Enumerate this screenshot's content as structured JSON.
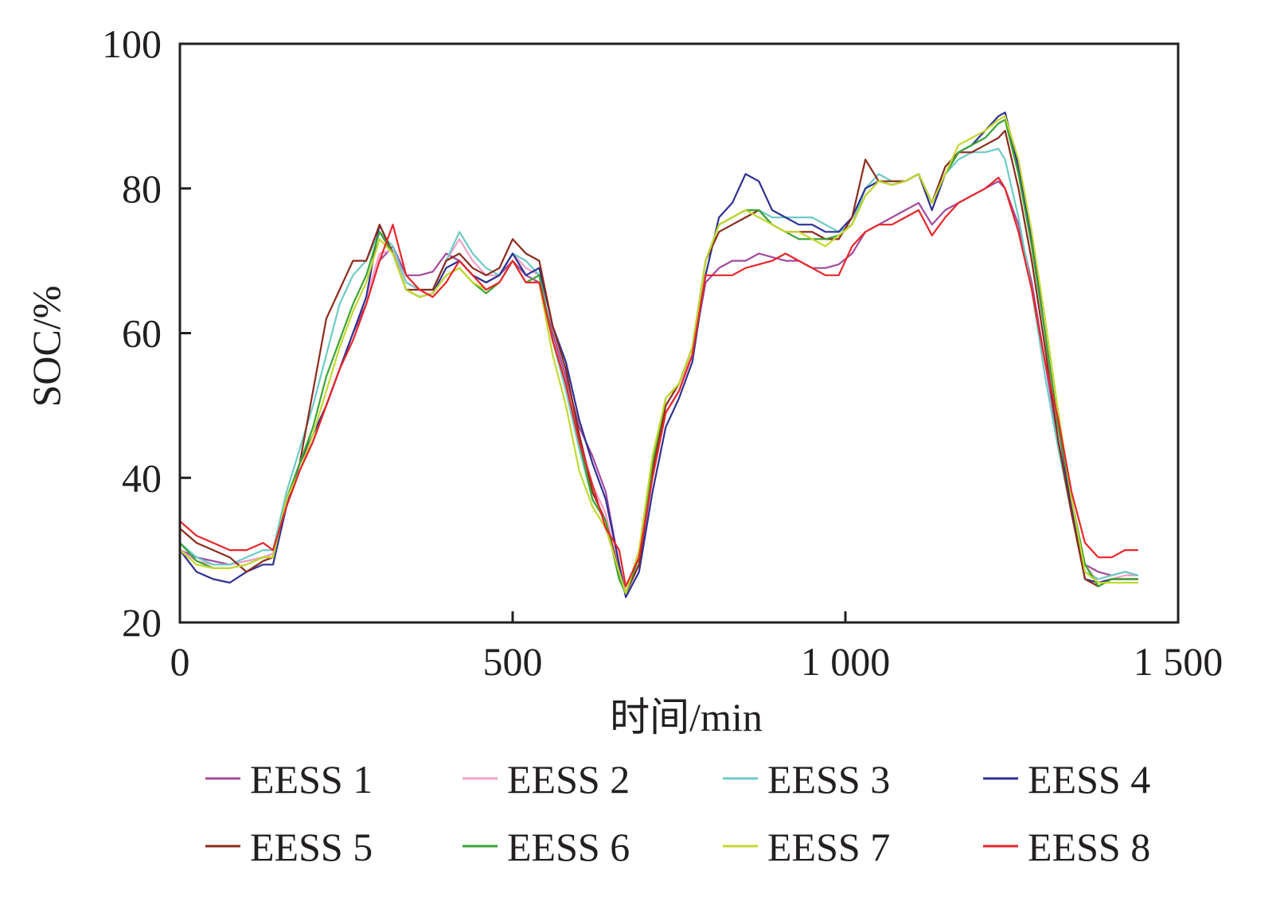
{
  "chart_data": {
    "type": "line",
    "title": "",
    "xlabel": "时间/min",
    "ylabel": "SOC/%",
    "xlim": [
      0,
      1500
    ],
    "ylim": [
      20,
      100
    ],
    "xticks": [
      {
        "value": 0,
        "label": "0"
      },
      {
        "value": 500,
        "label": "500"
      },
      {
        "value": 1000,
        "label": "1 000"
      },
      {
        "value": 1500,
        "label": "1 500"
      }
    ],
    "yticks": [
      {
        "value": 20,
        "label": "20"
      },
      {
        "value": 40,
        "label": "40"
      },
      {
        "value": 60,
        "label": "60"
      },
      {
        "value": 80,
        "label": "80"
      },
      {
        "value": 100,
        "label": "100"
      }
    ],
    "grid": false,
    "legend_placement": "bottom",
    "x": [
      0,
      25,
      50,
      75,
      100,
      125,
      140,
      160,
      180,
      200,
      220,
      240,
      260,
      280,
      300,
      320,
      340,
      360,
      380,
      400,
      420,
      440,
      460,
      480,
      500,
      520,
      540,
      560,
      580,
      600,
      620,
      640,
      660,
      670,
      690,
      710,
      730,
      750,
      770,
      790,
      810,
      830,
      850,
      870,
      890,
      910,
      930,
      950,
      970,
      990,
      1010,
      1030,
      1050,
      1070,
      1090,
      1110,
      1130,
      1150,
      1170,
      1190,
      1210,
      1230,
      1240,
      1260,
      1280,
      1300,
      1320,
      1340,
      1360,
      1380,
      1400,
      1420,
      1440
    ],
    "series": [
      {
        "name": "EESS 1",
        "color": "#a24a9e",
        "values": [
          30,
          29,
          28.5,
          28,
          28.5,
          29,
          29.5,
          36,
          41,
          45,
          50,
          55,
          60,
          64,
          70,
          72,
          68,
          68,
          68.5,
          71,
          70,
          68,
          67,
          68,
          70,
          68,
          67,
          60,
          54,
          47,
          43,
          38,
          28,
          24,
          28,
          40,
          49,
          52,
          57,
          67,
          69,
          70,
          70,
          71,
          70.5,
          70,
          70,
          69,
          69,
          69.5,
          71,
          74,
          75,
          76,
          77,
          78,
          75,
          77,
          78,
          79,
          80,
          81,
          80,
          75,
          67,
          56,
          45,
          36,
          28,
          27,
          26.5,
          27,
          26.5
        ]
      },
      {
        "name": "EESS 2",
        "color": "#f59fc8",
        "values": [
          30,
          28.5,
          28,
          28,
          28.5,
          29,
          29.5,
          37,
          42,
          46,
          50,
          55,
          60,
          65,
          71,
          71.5,
          67,
          66,
          66,
          70,
          73,
          70,
          68,
          68,
          71,
          69,
          68,
          59,
          53,
          46,
          39,
          35,
          27,
          24,
          29,
          41,
          50,
          53,
          57,
          70,
          75,
          76,
          77,
          77,
          75,
          74,
          74,
          74,
          73,
          73.5,
          75,
          80,
          81,
          80.5,
          81,
          82,
          78,
          82,
          85,
          86,
          87,
          89,
          89.5,
          82,
          72,
          60,
          47,
          37,
          28,
          25.5,
          26,
          26.5,
          26.5
        ]
      },
      {
        "name": "EESS 3",
        "color": "#6ccbc6",
        "values": [
          31,
          29,
          28,
          28,
          29,
          30,
          30,
          38,
          44,
          50,
          57,
          64,
          68,
          70,
          74,
          72,
          67,
          66,
          66,
          70,
          74,
          71,
          69,
          68,
          71,
          70,
          68,
          59,
          52,
          44,
          37,
          34,
          26,
          24,
          29,
          42,
          51,
          53,
          58,
          70,
          75,
          76,
          77,
          77,
          76,
          76,
          76,
          76,
          75,
          74,
          75,
          80,
          82,
          81,
          81,
          82,
          78,
          82,
          84,
          85,
          85,
          85.5,
          84,
          76,
          66,
          54,
          44,
          35,
          27,
          26,
          26.5,
          27,
          26.5
        ]
      },
      {
        "name": "EESS 4",
        "color": "#2e3192",
        "values": [
          30,
          27,
          26,
          25.5,
          27,
          28,
          28,
          36,
          42,
          46,
          50,
          55,
          60,
          65,
          75,
          71,
          66,
          65,
          65.5,
          69,
          70,
          68,
          67,
          68,
          71,
          68,
          69,
          61,
          56,
          48,
          42,
          37,
          28,
          23.5,
          27,
          38,
          47,
          51,
          56,
          68,
          76,
          78,
          82,
          81,
          77,
          76,
          75,
          75,
          74,
          74,
          76,
          80,
          81,
          80.5,
          81,
          82,
          77,
          82,
          85,
          86,
          88,
          90,
          90.5,
          83,
          73,
          60,
          47,
          36,
          26,
          25.5,
          26,
          26,
          26
        ]
      },
      {
        "name": "EESS 5",
        "color": "#8b2b1c",
        "values": [
          33,
          31,
          30,
          29,
          27,
          28.5,
          29,
          37,
          42,
          52,
          62,
          66,
          70,
          70,
          75,
          71,
          66,
          66,
          66,
          70,
          71,
          69,
          68,
          69,
          73,
          71,
          70,
          61,
          55,
          46,
          38,
          34,
          27,
          24,
          28,
          41,
          50,
          53,
          58,
          70,
          74,
          75,
          76,
          77,
          75,
          74,
          74,
          74,
          73,
          73,
          76,
          84,
          81,
          81,
          81,
          82,
          78,
          83,
          85,
          85,
          86,
          87,
          88,
          80,
          70,
          58,
          45,
          35,
          26,
          25,
          26,
          26,
          26
        ]
      },
      {
        "name": "EESS 6",
        "color": "#3aa535",
        "values": [
          31,
          28.5,
          27.5,
          27.5,
          28,
          29,
          29,
          37,
          42,
          47,
          54,
          59,
          64,
          68,
          74,
          71,
          66,
          65,
          65.5,
          68,
          69,
          67,
          65.5,
          67,
          70,
          67,
          68,
          59,
          53,
          45,
          37,
          34,
          26,
          24,
          29,
          42,
          51,
          53,
          58,
          70,
          75,
          76,
          77,
          77,
          75,
          74,
          73,
          73,
          73,
          73.5,
          75,
          79,
          81,
          80.5,
          81,
          82,
          78,
          82,
          85,
          86,
          87,
          89,
          89.5,
          82,
          72,
          60,
          47,
          37,
          28,
          25,
          26,
          26,
          26
        ]
      },
      {
        "name": "EESS 7",
        "color": "#c4d82e",
        "values": [
          30,
          28,
          27.5,
          27.5,
          28,
          29,
          29,
          37,
          41,
          46,
          52,
          58,
          63,
          67,
          73,
          71,
          66,
          65,
          65.5,
          68,
          69,
          67,
          66,
          67,
          70,
          67,
          67,
          57,
          50,
          41,
          36,
          33,
          27,
          24,
          30,
          43,
          51,
          53,
          58,
          70,
          75,
          76,
          77,
          76,
          75,
          74,
          74,
          73,
          72,
          73.5,
          75,
          79,
          81,
          80.5,
          81,
          82,
          78,
          82,
          86,
          87,
          88,
          89.5,
          90,
          84,
          74,
          62,
          49,
          37,
          27,
          25.5,
          25.5,
          25.5,
          25.5
        ]
      },
      {
        "name": "EESS 8",
        "color": "#e8262a",
        "values": [
          34,
          32,
          31,
          30,
          30,
          31,
          30,
          36,
          41,
          45,
          50,
          55,
          59,
          64,
          70,
          75,
          68,
          66,
          65,
          67,
          70,
          68,
          66,
          67,
          70,
          67,
          67,
          59,
          53,
          45,
          39,
          33,
          30,
          25,
          29,
          40,
          49,
          52,
          57,
          68,
          68,
          68,
          69,
          69.5,
          70,
          71,
          70,
          69,
          68,
          68,
          72,
          74,
          75,
          75,
          76,
          77,
          73.5,
          76,
          78,
          79,
          80,
          81.5,
          80,
          74,
          66,
          56,
          48,
          38,
          31,
          29,
          29,
          30,
          30
        ]
      }
    ]
  }
}
